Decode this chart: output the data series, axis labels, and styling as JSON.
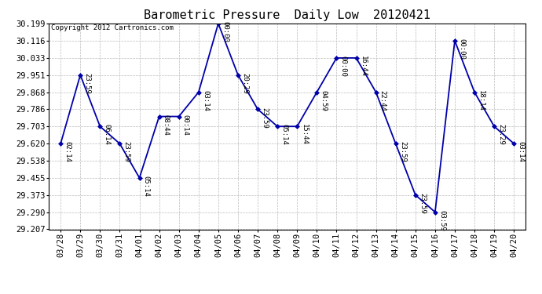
{
  "title": "Barometric Pressure  Daily Low  20120421",
  "copyright": "Copyright 2012 Cartronics.com",
  "x_labels": [
    "03/28",
    "03/29",
    "03/30",
    "03/31",
    "04/01",
    "04/02",
    "04/03",
    "04/04",
    "04/05",
    "04/06",
    "04/07",
    "04/08",
    "04/09",
    "04/10",
    "04/11",
    "04/12",
    "04/13",
    "04/14",
    "04/15",
    "04/16",
    "04/17",
    "04/18",
    "04/19",
    "04/20"
  ],
  "y_values": [
    29.62,
    29.951,
    29.703,
    29.62,
    29.455,
    29.751,
    29.751,
    29.868,
    30.199,
    29.951,
    29.786,
    29.703,
    29.703,
    29.868,
    30.033,
    30.033,
    29.868,
    29.62,
    29.373,
    29.29,
    30.116,
    29.868,
    29.703,
    29.62
  ],
  "point_labels": [
    "02:14",
    "23:59",
    "06:14",
    "23:59",
    "05:14",
    "08:44",
    "00:14",
    "03:14",
    "00:00",
    "20:29",
    "23:59",
    "05:14",
    "15:44",
    "04:59",
    "00:00",
    "16:44",
    "22:44",
    "23:59",
    "23:59",
    "03:59",
    "00:00",
    "18:14",
    "23:29",
    "03:14"
  ],
  "ylim_min": 29.207,
  "ylim_max": 30.199,
  "yticks": [
    29.207,
    29.29,
    29.373,
    29.455,
    29.538,
    29.62,
    29.703,
    29.786,
    29.868,
    29.951,
    30.033,
    30.116,
    30.199
  ],
  "line_color": "#0000AA",
  "marker_color": "#0000AA",
  "bg_color": "#ffffff",
  "grid_color": "#bbbbbb",
  "title_fontsize": 11,
  "label_fontsize": 6.5,
  "tick_fontsize": 7.5,
  "copyright_fontsize": 6.5
}
